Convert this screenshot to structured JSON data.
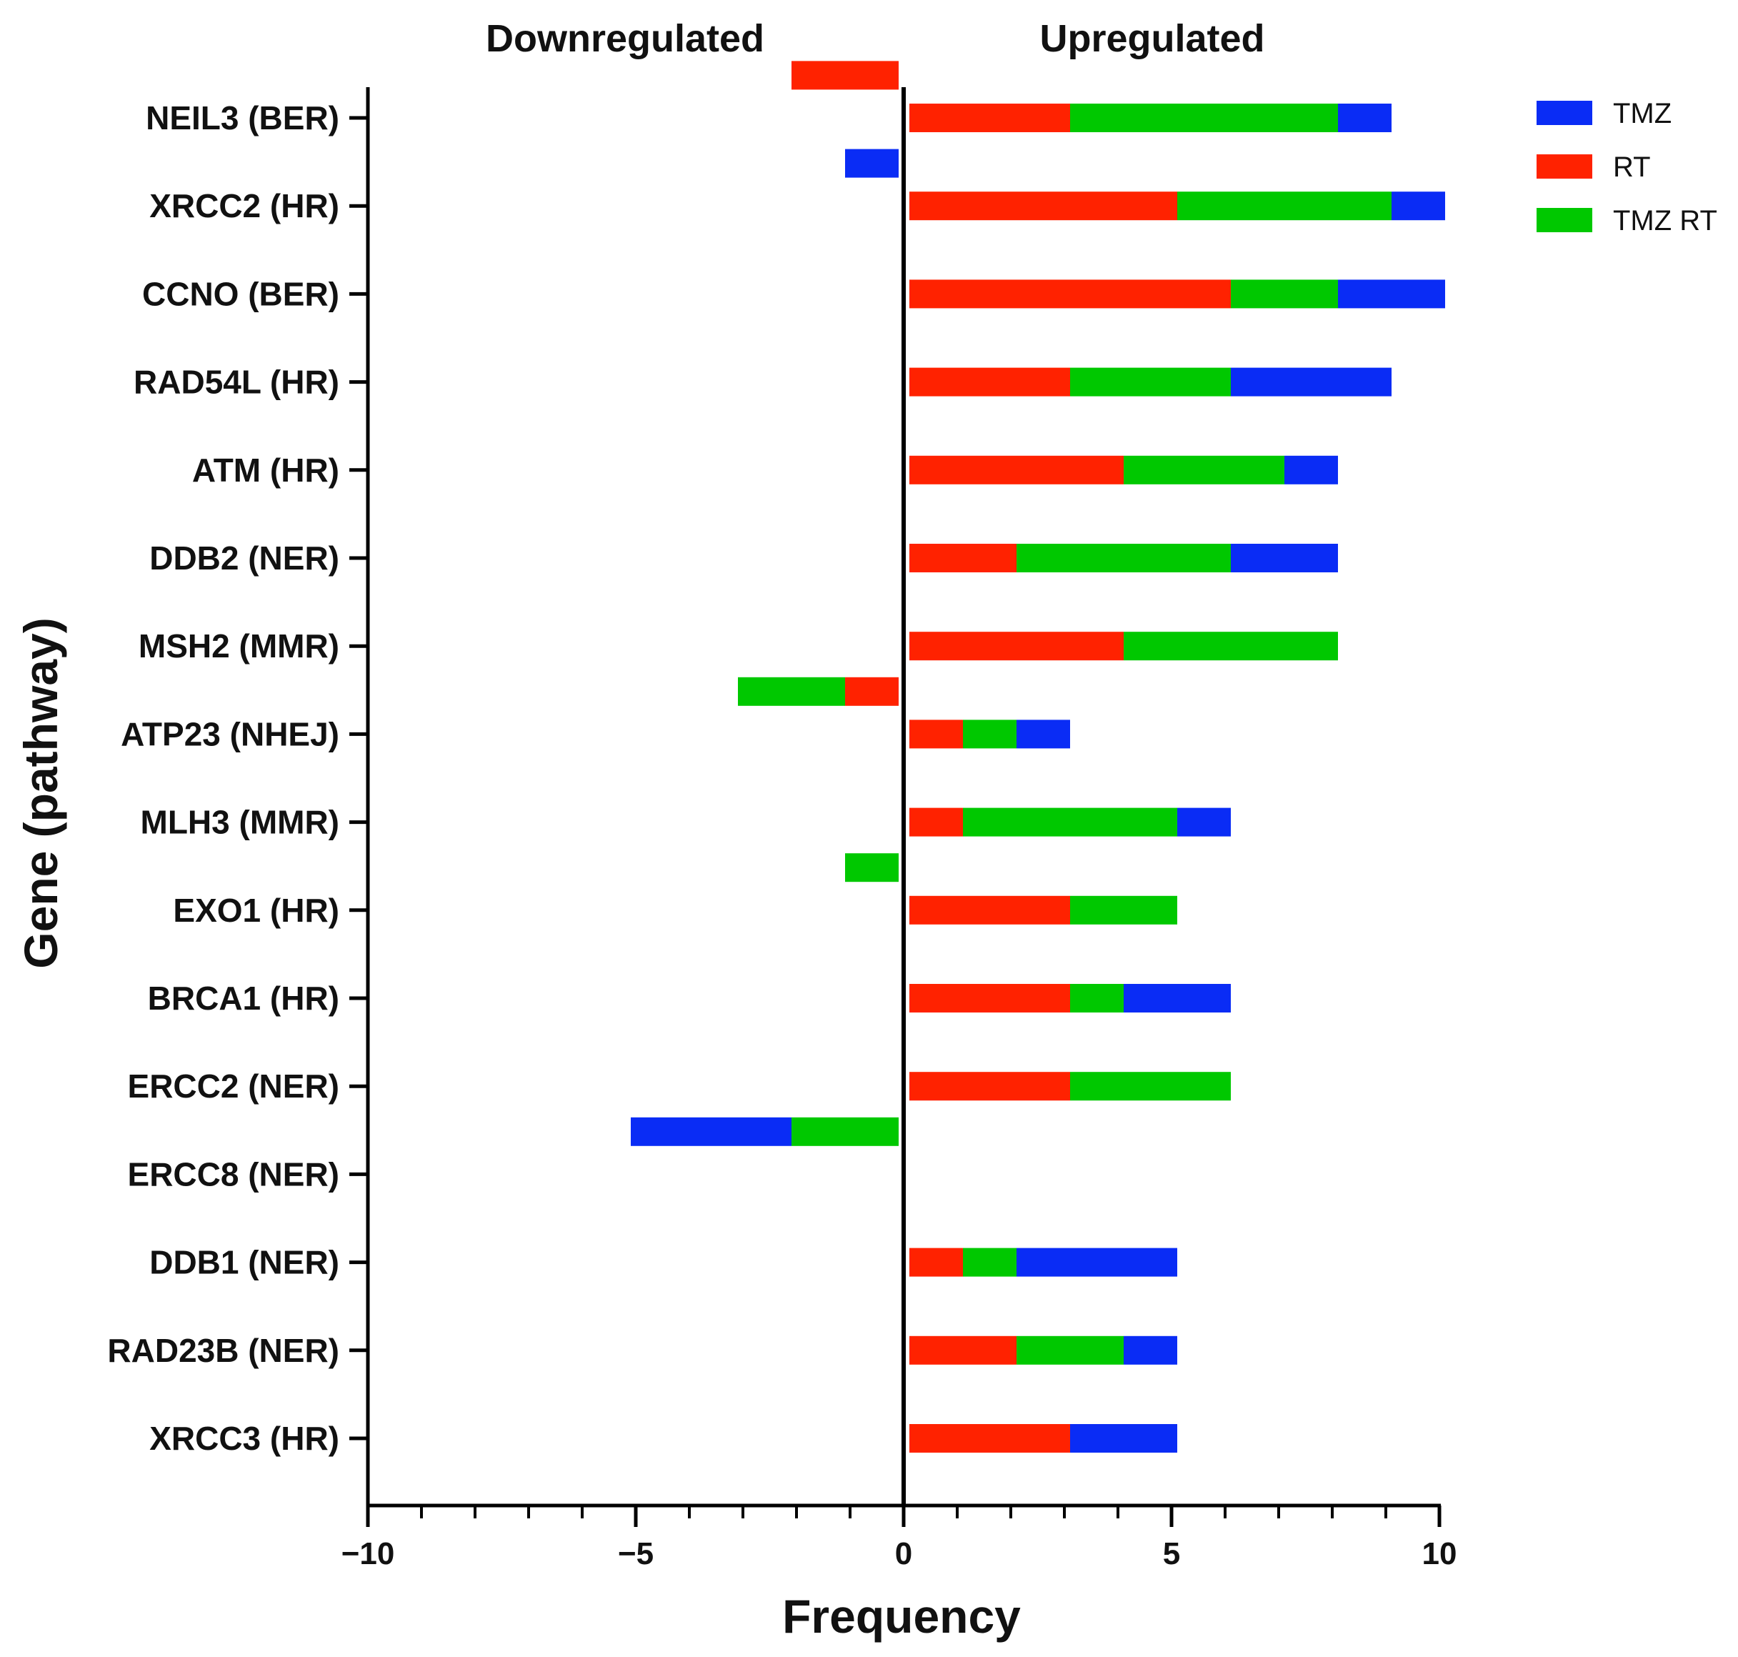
{
  "chart_data": {
    "type": "bar",
    "orientation": "horizontal",
    "stacked": true,
    "headers": {
      "left": "Downregulated",
      "right": "Upregulated"
    },
    "xlabel": "Frequency",
    "ylabel": "Gene (pathway)",
    "xlim": [
      -10,
      10
    ],
    "xticks": [
      {
        "value": -10,
        "label": "−10"
      },
      {
        "value": -5,
        "label": "−5"
      },
      {
        "value": 0,
        "label": "0"
      },
      {
        "value": 5,
        "label": "5"
      },
      {
        "value": 10,
        "label": "10"
      }
    ],
    "legend_position": "top-right",
    "legend": [
      {
        "name": "TMZ",
        "color": "#0a2cf5"
      },
      {
        "name": "RT",
        "color": "#ff2200"
      },
      {
        "name": "TMZ RT",
        "color": "#00c800"
      }
    ],
    "categories": [
      "NEIL3 (BER)",
      "XRCC2 (HR)",
      "CCNO (BER)",
      "RAD54L (HR)",
      "ATM (HR)",
      "DDB2 (NER)",
      "MSH2 (MMR)",
      "ATP23 (NHEJ)",
      "MLH3 (MMR)",
      "EXO1 (HR)",
      "BRCA1 (HR)",
      "ERCC2 (NER)",
      "ERCC8 (NER)",
      "DDB1 (NER)",
      "RAD23B (NER)",
      "XRCC3 (HR)"
    ],
    "upregulated": {
      "series_order": [
        "RT",
        "TMZ RT",
        "TMZ"
      ],
      "RT": [
        3,
        5,
        6,
        3,
        4,
        2,
        4,
        1,
        1,
        3,
        3,
        3,
        0,
        1,
        2,
        3
      ],
      "TMZ RT": [
        5,
        4,
        2,
        3,
        3,
        4,
        4,
        1,
        4,
        2,
        1,
        3,
        0,
        1,
        2,
        0
      ],
      "TMZ": [
        1,
        1,
        2,
        3,
        1,
        2,
        0,
        1,
        1,
        0,
        2,
        0,
        0,
        3,
        1,
        2
      ]
    },
    "downregulated": {
      "series_order": [
        "RT",
        "TMZ RT",
        "TMZ"
      ],
      "RT": [
        2,
        0,
        0,
        0,
        0,
        0,
        0,
        1,
        0,
        0,
        0,
        0,
        0,
        0,
        0,
        0
      ],
      "TMZ RT": [
        0,
        0,
        0,
        0,
        0,
        0,
        0,
        2,
        0,
        1,
        0,
        0,
        2,
        0,
        0,
        0
      ],
      "TMZ": [
        0,
        1,
        0,
        0,
        0,
        0,
        0,
        0,
        0,
        0,
        0,
        0,
        3,
        0,
        0,
        0
      ]
    }
  }
}
